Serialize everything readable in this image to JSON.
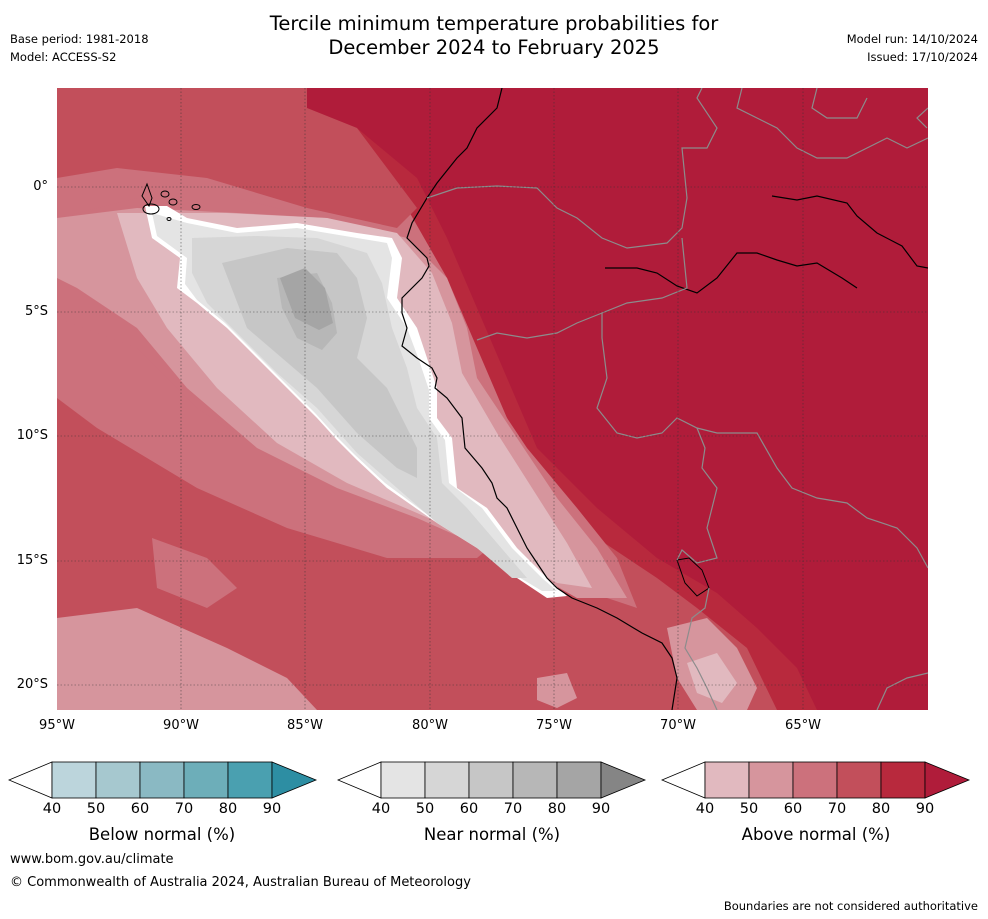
{
  "header": {
    "title_line1": "Tercile minimum temperature probabilities for",
    "title_line2": "December 2024 to February 2025",
    "base_period": "Base period: 1981-2018",
    "model": "Model: ACCESS-S2",
    "model_run": "Model run: 14/10/2024",
    "issued": "Issued: 17/10/2024"
  },
  "map": {
    "lat_labels": [
      "0°",
      "5°S",
      "10°S",
      "15°S",
      "20°S"
    ],
    "lon_labels": [
      "95°W",
      "90°W",
      "85°W",
      "80°W",
      "75°W",
      "70°W",
      "65°W"
    ],
    "colors": {
      "above_40": "#e1b9bf",
      "above_50": "#d6959d",
      "above_60": "#cc717c",
      "above_70": "#c24f5b",
      "above_80": "#b8293d",
      "above_90": "#b01c3a",
      "near_40": "#e4e4e4",
      "near_50": "#d6d6d6",
      "near_60": "#c6c6c6",
      "near_70": "#b7b7b7",
      "near_80": "#a5a5a5"
    }
  },
  "colorbars": [
    {
      "label": "Below normal (%)",
      "ticks": [
        "40",
        "50",
        "60",
        "70",
        "80",
        "90"
      ],
      "colors": [
        "#ffffff",
        "#bcd5dc",
        "#a6c8cf",
        "#8ab9c3",
        "#6daeb9",
        "#4aa0b0",
        "#2d8ea3"
      ]
    },
    {
      "label": "Near normal (%)",
      "ticks": [
        "40",
        "50",
        "60",
        "70",
        "80",
        "90"
      ],
      "colors": [
        "#ffffff",
        "#e4e4e4",
        "#d6d6d6",
        "#c6c6c6",
        "#b7b7b7",
        "#a5a5a5",
        "#858585"
      ]
    },
    {
      "label": "Above normal (%)",
      "ticks": [
        "40",
        "50",
        "60",
        "70",
        "80",
        "90"
      ],
      "colors": [
        "#ffffff",
        "#e1b9bf",
        "#d6959d",
        "#cc717c",
        "#c24f5b",
        "#b8293d",
        "#b01c3a"
      ]
    }
  ],
  "footer": {
    "website": "www.bom.gov.au/climate",
    "copyright": "© Commonwealth of Australia 2024, Australian Bureau of Meteorology",
    "disclaimer": "Boundaries are not considered authoritative"
  }
}
